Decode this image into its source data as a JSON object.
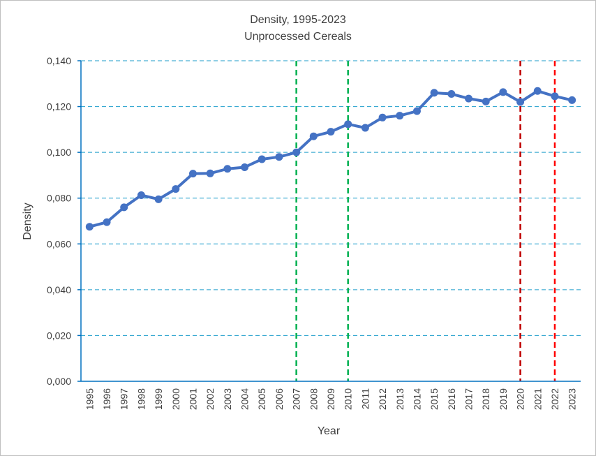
{
  "chart_data": {
    "type": "line",
    "title": "Density, 1995-2023",
    "subtitle": "Unprocessed Cereals",
    "xlabel": "Year",
    "ylabel": "Density",
    "ylim": [
      0,
      0.14
    ],
    "yticks": [
      "0,000",
      "0,020",
      "0,040",
      "0,060",
      "0,080",
      "0,100",
      "0,120",
      "0,140"
    ],
    "grid": "horizontal dashed",
    "x": [
      "1995",
      "1996",
      "1997",
      "1998",
      "1999",
      "2000",
      "2001",
      "2002",
      "2003",
      "2004",
      "2005",
      "2006",
      "2007",
      "2008",
      "2009",
      "2010",
      "2011",
      "2012",
      "2013",
      "2014",
      "2015",
      "2016",
      "2017",
      "2018",
      "2019",
      "2020",
      "2021",
      "2022",
      "2023"
    ],
    "series": [
      {
        "values": [
          0.0675,
          0.0695,
          0.076,
          0.0813,
          0.0795,
          0.084,
          0.0907,
          0.0908,
          0.0928,
          0.0935,
          0.097,
          0.098,
          0.1,
          0.107,
          0.109,
          0.1123,
          0.1107,
          0.1152,
          0.116,
          0.118,
          0.126,
          0.1255,
          0.1235,
          0.1222,
          0.1263,
          0.122,
          0.1268,
          0.1245,
          0.1228
        ],
        "color": "#4472c4"
      }
    ],
    "reference_lines": [
      {
        "x": "2007",
        "color": "#00b050",
        "style": "dashed"
      },
      {
        "x": "2010",
        "color": "#00b050",
        "style": "dashed"
      },
      {
        "x": "2020",
        "color": "#c00000",
        "style": "dashed"
      },
      {
        "x": "2022",
        "color": "#ff0000",
        "style": "dashed"
      }
    ],
    "colors": {
      "axis": "#0070c0",
      "grid": "#1f9ecb"
    }
  }
}
